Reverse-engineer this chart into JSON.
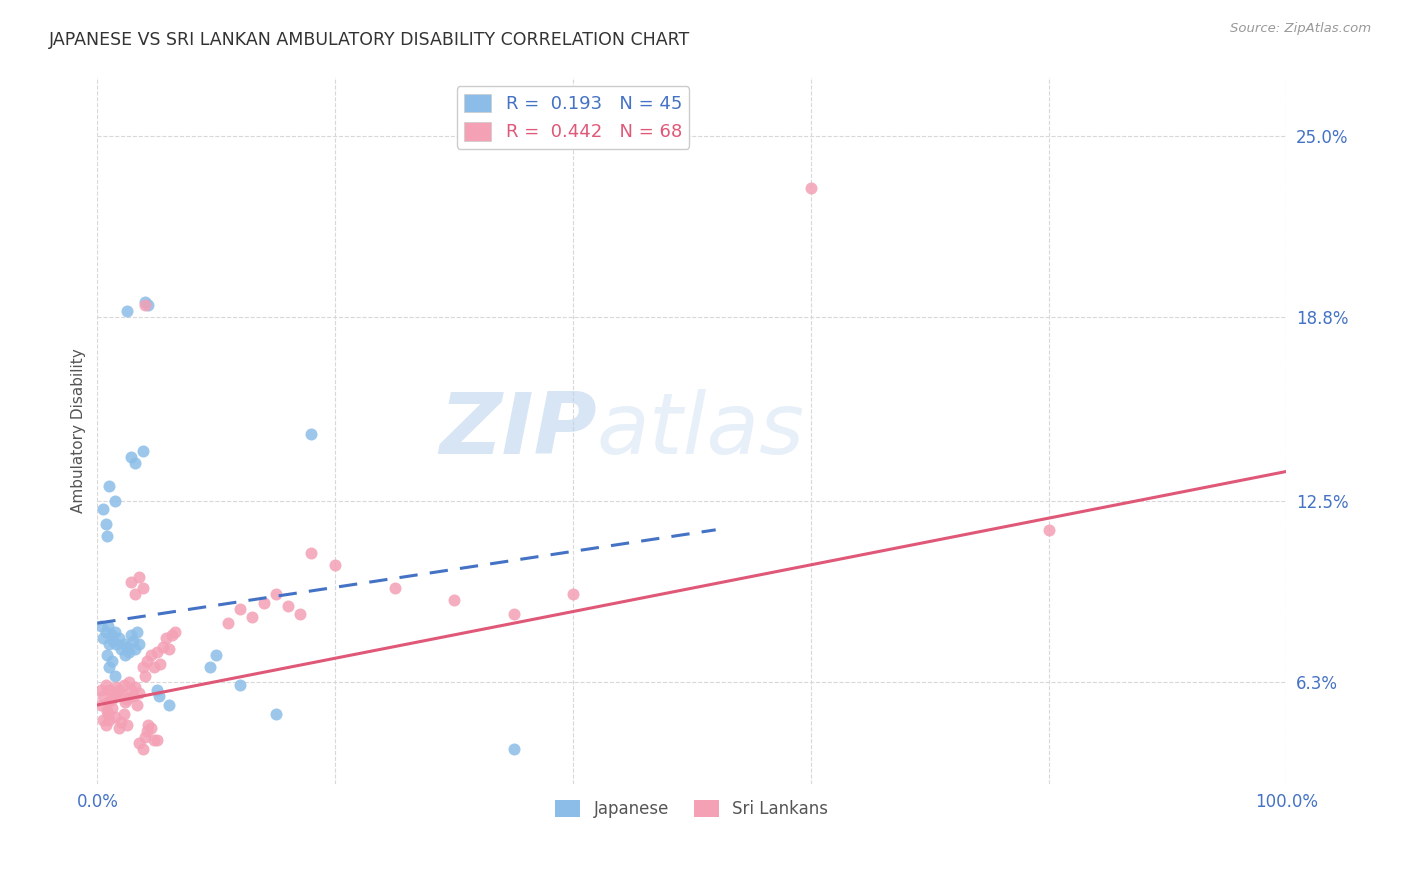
{
  "title": "JAPANESE VS SRI LANKAN AMBULATORY DISABILITY CORRELATION CHART",
  "source": "Source: ZipAtlas.com",
  "ylabel": "Ambulatory Disability",
  "xlim": [
    0.0,
    1.0
  ],
  "ylim": [
    0.028,
    0.27
  ],
  "ytick_labels": [
    "6.3%",
    "12.5%",
    "18.8%",
    "25.0%"
  ],
  "ytick_values": [
    0.063,
    0.125,
    0.188,
    0.25
  ],
  "japanese_color": "#8bbde8",
  "srilanka_color": "#f4a0b5",
  "japanese_line_color": "#4472c4",
  "srilanka_line_color": "#e05878",
  "background_color": "#ffffff",
  "grid_color": "#d8d8d8",
  "watermark_zip": "ZIP",
  "watermark_atlas": "atlas",
  "japanese_points": [
    [
      0.003,
      0.082
    ],
    [
      0.005,
      0.078
    ],
    [
      0.007,
      0.08
    ],
    [
      0.009,
      0.082
    ],
    [
      0.01,
      0.076
    ],
    [
      0.012,
      0.079
    ],
    [
      0.013,
      0.077
    ],
    [
      0.015,
      0.08
    ],
    [
      0.016,
      0.076
    ],
    [
      0.018,
      0.078
    ],
    [
      0.02,
      0.074
    ],
    [
      0.022,
      0.076
    ],
    [
      0.023,
      0.072
    ],
    [
      0.025,
      0.075
    ],
    [
      0.027,
      0.073
    ],
    [
      0.028,
      0.079
    ],
    [
      0.03,
      0.077
    ],
    [
      0.032,
      0.074
    ],
    [
      0.033,
      0.08
    ],
    [
      0.035,
      0.076
    ],
    [
      0.008,
      0.072
    ],
    [
      0.01,
      0.068
    ],
    [
      0.012,
      0.07
    ],
    [
      0.015,
      0.065
    ],
    [
      0.01,
      0.13
    ],
    [
      0.015,
      0.125
    ],
    [
      0.028,
      0.14
    ],
    [
      0.032,
      0.138
    ],
    [
      0.038,
      0.142
    ],
    [
      0.04,
      0.193
    ],
    [
      0.043,
      0.192
    ],
    [
      0.025,
      0.19
    ],
    [
      0.005,
      0.122
    ],
    [
      0.007,
      0.117
    ],
    [
      0.008,
      0.113
    ],
    [
      0.05,
      0.06
    ],
    [
      0.052,
      0.058
    ],
    [
      0.18,
      0.148
    ],
    [
      0.35,
      0.04
    ],
    [
      0.15,
      0.052
    ],
    [
      0.12,
      0.062
    ],
    [
      0.095,
      0.068
    ],
    [
      0.1,
      0.072
    ],
    [
      0.06,
      0.055
    ]
  ],
  "srilanka_points": [
    [
      0.003,
      0.06
    ],
    [
      0.005,
      0.058
    ],
    [
      0.007,
      0.062
    ],
    [
      0.009,
      0.056
    ],
    [
      0.01,
      0.06
    ],
    [
      0.012,
      0.057
    ],
    [
      0.013,
      0.059
    ],
    [
      0.015,
      0.058
    ],
    [
      0.016,
      0.061
    ],
    [
      0.018,
      0.06
    ],
    [
      0.02,
      0.059
    ],
    [
      0.022,
      0.062
    ],
    [
      0.023,
      0.056
    ],
    [
      0.025,
      0.057
    ],
    [
      0.027,
      0.063
    ],
    [
      0.028,
      0.06
    ],
    [
      0.03,
      0.058
    ],
    [
      0.032,
      0.061
    ],
    [
      0.033,
      0.055
    ],
    [
      0.035,
      0.059
    ],
    [
      0.008,
      0.053
    ],
    [
      0.01,
      0.05
    ],
    [
      0.012,
      0.054
    ],
    [
      0.015,
      0.051
    ],
    [
      0.018,
      0.047
    ],
    [
      0.02,
      0.049
    ],
    [
      0.022,
      0.052
    ],
    [
      0.025,
      0.048
    ],
    [
      0.003,
      0.055
    ],
    [
      0.005,
      0.05
    ],
    [
      0.007,
      0.048
    ],
    [
      0.009,
      0.052
    ],
    [
      0.038,
      0.068
    ],
    [
      0.04,
      0.065
    ],
    [
      0.042,
      0.07
    ],
    [
      0.045,
      0.072
    ],
    [
      0.048,
      0.068
    ],
    [
      0.05,
      0.073
    ],
    [
      0.053,
      0.069
    ],
    [
      0.055,
      0.075
    ],
    [
      0.058,
      0.078
    ],
    [
      0.06,
      0.074
    ],
    [
      0.063,
      0.079
    ],
    [
      0.065,
      0.08
    ],
    [
      0.028,
      0.097
    ],
    [
      0.032,
      0.093
    ],
    [
      0.035,
      0.099
    ],
    [
      0.038,
      0.095
    ],
    [
      0.035,
      0.042
    ],
    [
      0.038,
      0.04
    ],
    [
      0.04,
      0.044
    ],
    [
      0.042,
      0.046
    ],
    [
      0.043,
      0.048
    ],
    [
      0.045,
      0.047
    ],
    [
      0.048,
      0.043
    ],
    [
      0.05,
      0.043
    ],
    [
      0.11,
      0.083
    ],
    [
      0.12,
      0.088
    ],
    [
      0.13,
      0.085
    ],
    [
      0.14,
      0.09
    ],
    [
      0.15,
      0.093
    ],
    [
      0.16,
      0.089
    ],
    [
      0.17,
      0.086
    ],
    [
      0.04,
      0.192
    ],
    [
      0.6,
      0.232
    ],
    [
      0.8,
      0.115
    ],
    [
      0.18,
      0.107
    ],
    [
      0.2,
      0.103
    ],
    [
      0.25,
      0.095
    ],
    [
      0.3,
      0.091
    ],
    [
      0.35,
      0.086
    ],
    [
      0.4,
      0.093
    ]
  ]
}
